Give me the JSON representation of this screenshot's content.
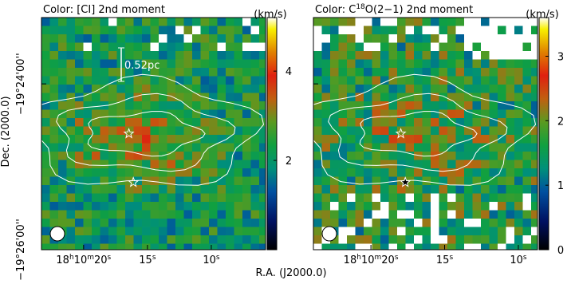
{
  "chart_data": [
    {
      "type": "map",
      "title_parts": [
        "Color: [CI] 2nd moment"
      ],
      "colorbar": {
        "label": "(km/s)",
        "lim": [
          0,
          5.2
        ],
        "ticks": [
          2,
          4
        ]
      },
      "xlim": [
        23.3,
        5.75
      ],
      "xticks": [
        {
          "value": 20,
          "label": [
            "18",
            "h",
            "10",
            "m",
            "20",
            "s"
          ]
        },
        {
          "value": 15,
          "label": [
            "15",
            "s"
          ]
        },
        {
          "value": 10,
          "label": [
            "10",
            "s"
          ]
        }
      ],
      "ylim": [
        26.0,
        23.2
      ],
      "yticks": [
        {
          "value": 24,
          "label": "−19°24'00''"
        },
        {
          "value": 26,
          "label": "−19°26'00''"
        }
      ],
      "ylabel": "Dec. (2000.0)",
      "xlabel": "R.A. (J2000.0)",
      "scale_bar": "0.52pc"
    },
    {
      "type": "map",
      "title_parts": [
        "Color: C",
        "18",
        "O(2−1) 2nd moment"
      ],
      "colorbar": {
        "label": "(km/s)",
        "lim": [
          0,
          3.6
        ],
        "ticks": [
          0,
          1,
          2,
          3
        ]
      },
      "xlim": [
        23.9,
        8.7
      ],
      "xticks": [
        {
          "value": 20,
          "label": [
            "18",
            "h",
            "10",
            "m",
            "20",
            "s"
          ]
        },
        {
          "value": 15,
          "label": [
            "15",
            "s"
          ]
        },
        {
          "value": 10,
          "label": [
            "10",
            "s"
          ]
        }
      ],
      "ylim": [
        26.0,
        23.2
      ],
      "yticks": [
        24,
        26
      ]
    }
  ]
}
